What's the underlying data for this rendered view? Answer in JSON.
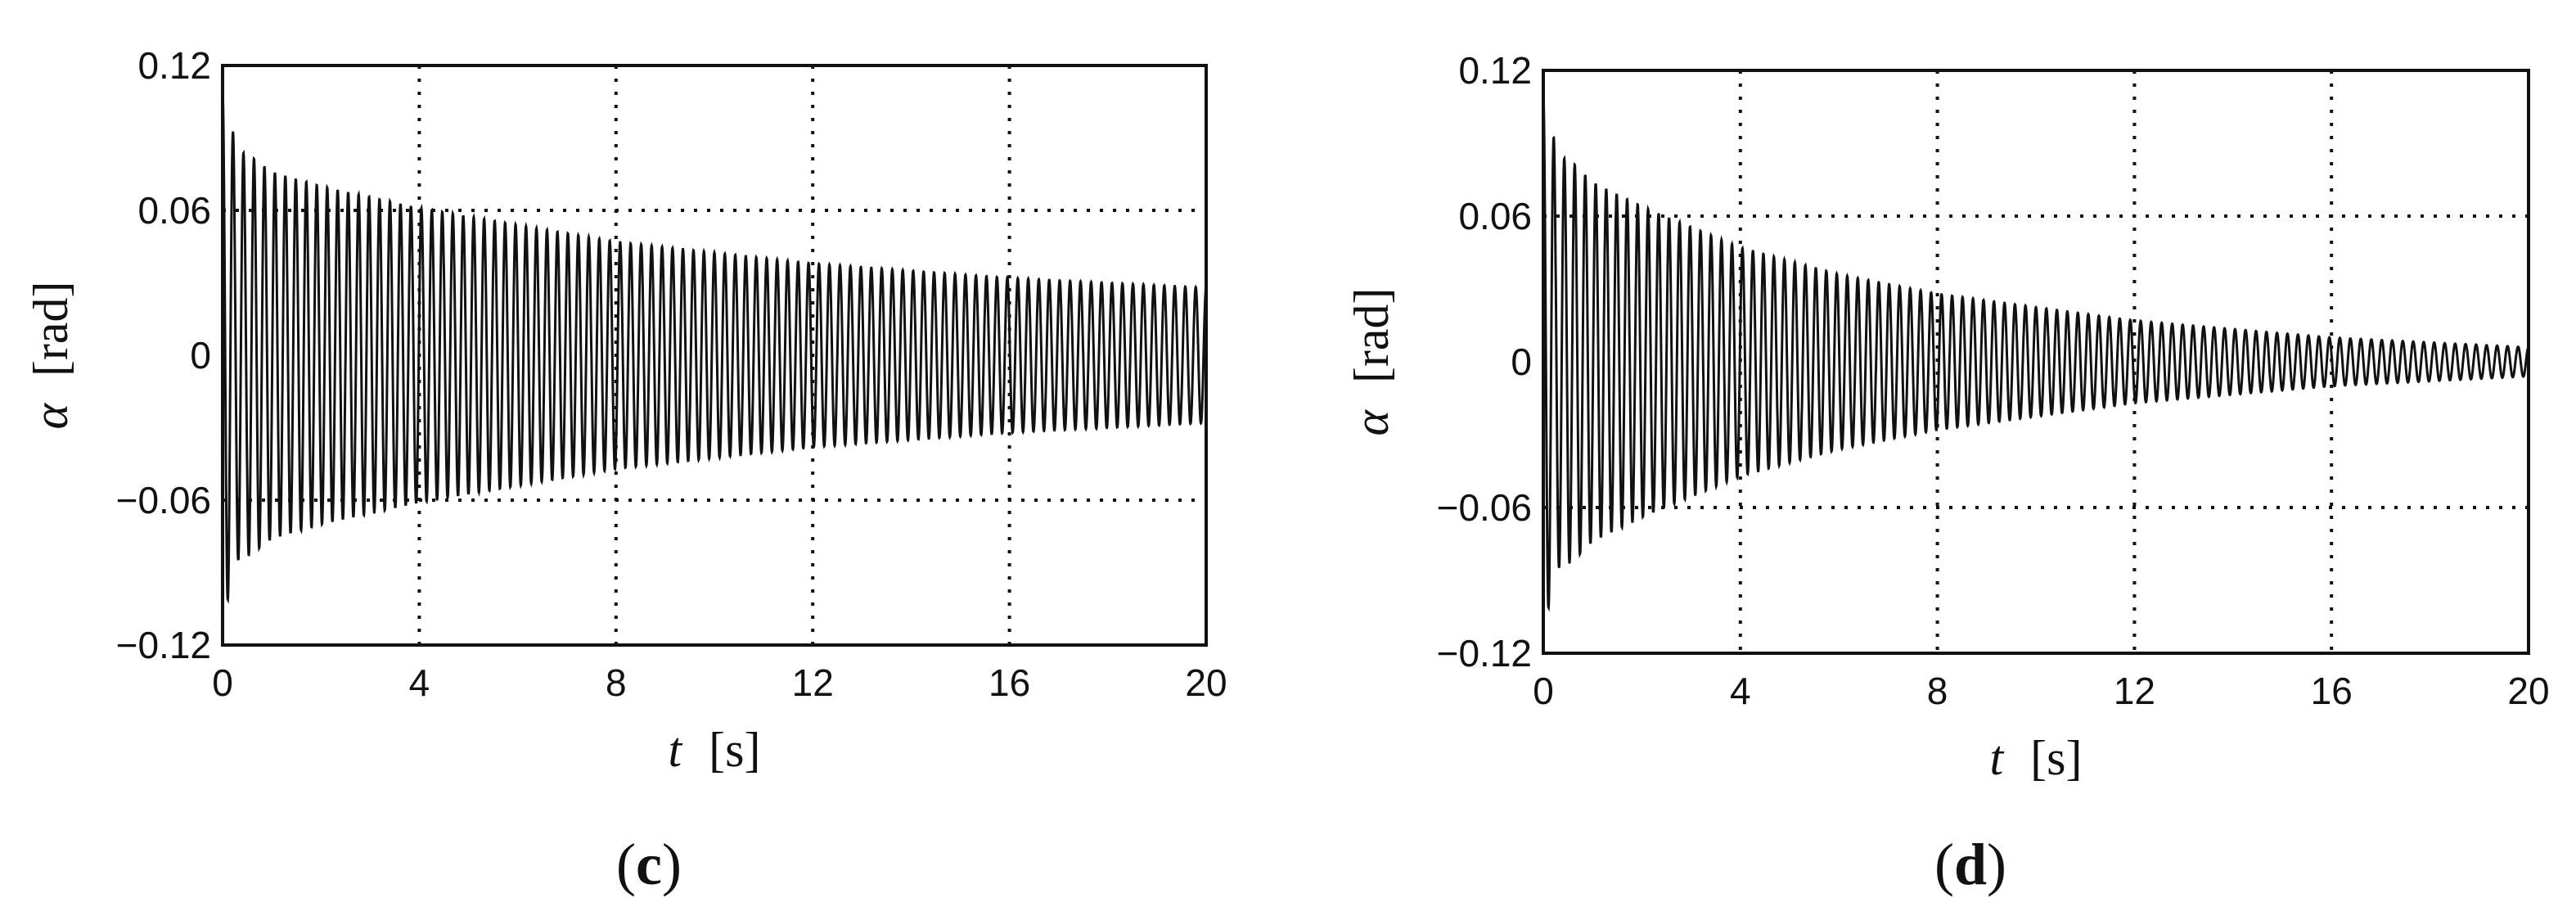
{
  "panels": [
    {
      "id": "c",
      "panel_label": "c",
      "xlabel_var": "t",
      "xlabel_unit": "[s]",
      "ylabel_var": "α",
      "ylabel_unit": "[rad]",
      "x_ticks": [
        "0",
        "4",
        "8",
        "12",
        "16",
        "20"
      ],
      "y_ticks": [
        "0.12",
        "0.06",
        "0",
        "−0.06",
        "−0.12"
      ]
    },
    {
      "id": "d",
      "panel_label": "d",
      "xlabel_var": "t",
      "xlabel_unit": "[s]",
      "ylabel_var": "α",
      "ylabel_unit": "[rad]",
      "x_ticks": [
        "0",
        "4",
        "8",
        "12",
        "16",
        "20"
      ],
      "y_ticks": [
        "0.12",
        "0.06",
        "0",
        "−0.06",
        "−0.12"
      ]
    }
  ],
  "chart_data": [
    {
      "type": "line",
      "panel": "c",
      "xlabel": "t [s]",
      "ylabel": "α [rad]",
      "xlim": [
        0,
        20
      ],
      "ylim": [
        -0.12,
        0.12
      ],
      "x_ticks": [
        0,
        4,
        8,
        12,
        16,
        20
      ],
      "y_ticks": [
        -0.12,
        -0.06,
        0,
        0.06,
        0.12
      ],
      "grid": true,
      "legend": "none",
      "series": [
        {
          "kind": "damped-oscillation",
          "frequency_hz": 4.7,
          "initial_value": 0.11,
          "envelope": {
            "t": [
              0,
              0.3,
              0.6,
              1,
              2,
              4,
              8,
              12,
              16,
              20
            ],
            "amplitude": [
              0.11,
              0.085,
              0.082,
              0.076,
              0.07,
              0.061,
              0.047,
              0.038,
              0.032,
              0.028
            ]
          }
        }
      ]
    },
    {
      "type": "line",
      "panel": "d",
      "xlabel": "t [s]",
      "ylabel": "α [rad]",
      "xlim": [
        0,
        20
      ],
      "ylim": [
        -0.12,
        0.12
      ],
      "x_ticks": [
        0,
        4,
        8,
        12,
        16,
        20
      ],
      "y_ticks": [
        -0.12,
        -0.06,
        0,
        0.06,
        0.12
      ],
      "grid": true,
      "legend": "none",
      "series": [
        {
          "kind": "damped-oscillation",
          "frequency_hz": 4.7,
          "initial_value": 0.11,
          "envelope": {
            "t": [
              0,
              0.3,
              0.6,
              1,
              2,
              4,
              6,
              8,
              12,
              16,
              20
            ],
            "amplitude": [
              0.11,
              0.085,
              0.082,
              0.074,
              0.064,
              0.047,
              0.036,
              0.028,
              0.017,
              0.01,
              0.006
            ]
          }
        }
      ]
    }
  ]
}
